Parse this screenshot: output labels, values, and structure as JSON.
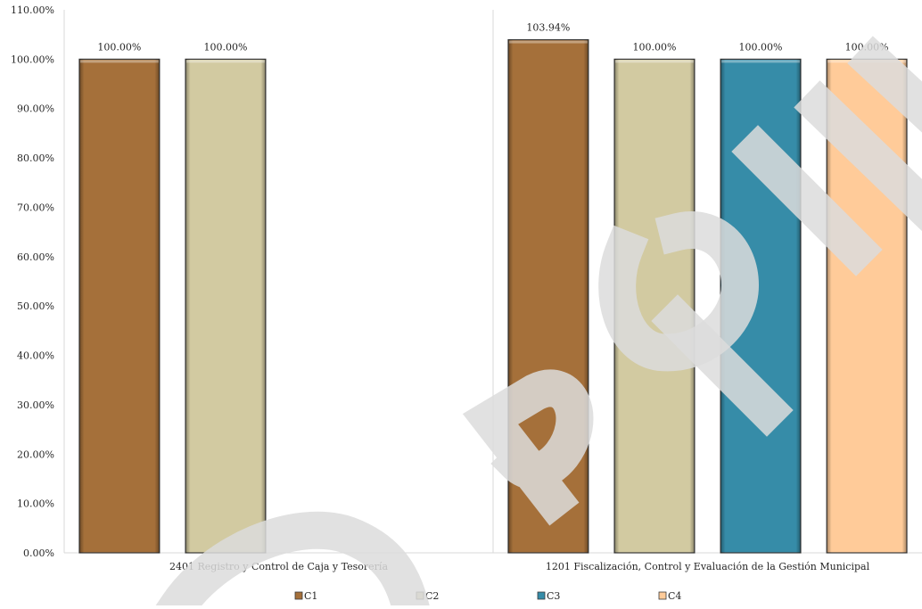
{
  "chart_data": {
    "type": "bar",
    "categories": [
      "2401 Registro y Control de Caja y Tesorería",
      "1201 Fiscalización, Control y Evaluación de la Gestión Municipal"
    ],
    "series": [
      {
        "name": "C1",
        "color": "#A5703A",
        "values": [
          100.0,
          103.94
        ]
      },
      {
        "name": "C2",
        "color": "#D2CAA1",
        "values": [
          100.0,
          100.0
        ]
      },
      {
        "name": "C3",
        "color": "#368CA8",
        "values": [
          null,
          100.0
        ]
      },
      {
        "name": "C4",
        "color": "#FFCB99",
        "values": [
          null,
          100.0
        ]
      }
    ],
    "data_labels": [
      [
        "100.00%",
        "103.94%"
      ],
      [
        "100.00%",
        "100.00%"
      ],
      [
        null,
        "100.00%"
      ],
      [
        null,
        "100.00%"
      ]
    ],
    "yticks": [
      "0.00%",
      "10.00%",
      "20.00%",
      "30.00%",
      "40.00%",
      "50.00%",
      "60.00%",
      "70.00%",
      "80.00%",
      "90.00%",
      "100.00%",
      "110.00%"
    ],
    "ylim": [
      0,
      110
    ],
    "title": "",
    "xlabel": "",
    "ylabel": "",
    "grid": false,
    "legend_position": "bottom"
  }
}
